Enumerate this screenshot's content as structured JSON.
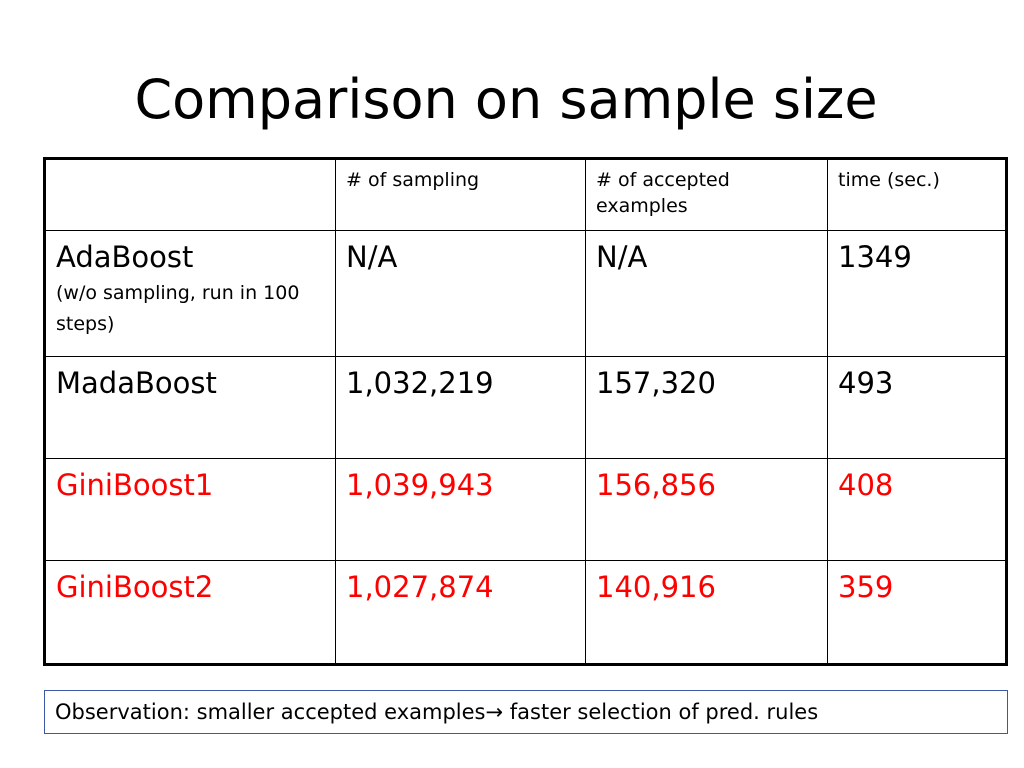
{
  "title": "Comparison on sample size",
  "table": {
    "headers": [
      "",
      "# of sampling",
      "# of  accepted examples",
      "time (sec.)"
    ],
    "rows": [
      {
        "method": "AdaBoost",
        "note": "(w/o sampling, run in 100 steps)",
        "sampling": "N/A",
        "accepted": "N/A",
        "time": "1349",
        "highlight": false
      },
      {
        "method": "MadaBoost",
        "note": "",
        "sampling": "1,032,219",
        "accepted": "157,320",
        "time": "493",
        "highlight": false
      },
      {
        "method": "GiniBoost1",
        "note": "",
        "sampling": "1,039,943",
        "accepted": "156,856",
        "time": "408",
        "highlight": true
      },
      {
        "method": "GiniBoost2",
        "note": "",
        "sampling": "1,027,874",
        "accepted": "140,916",
        "time": "359",
        "highlight": true
      }
    ]
  },
  "observation": "Observation:  smaller accepted examples→ faster selection of pred. rules",
  "colors": {
    "highlight": "#ff0000",
    "observation_border": "#3f57a8"
  }
}
